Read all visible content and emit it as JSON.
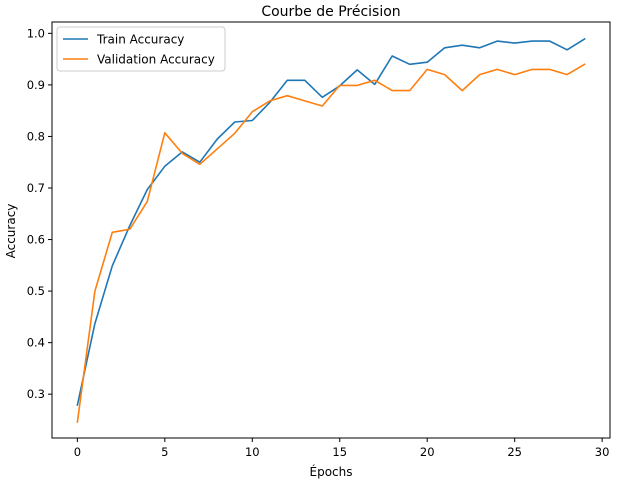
{
  "chart_data": {
    "type": "line",
    "title": "Courbe de Précision",
    "xlabel": "Épochs",
    "ylabel": "Accuracy",
    "xlim": [
      -1.45,
      30.45
    ],
    "ylim": [
      0.215,
      1.022
    ],
    "x_ticks": [
      0,
      5,
      10,
      15,
      20,
      25,
      30
    ],
    "y_ticks": [
      0.3,
      0.4,
      0.5,
      0.6,
      0.7,
      0.8,
      0.9,
      1.0
    ],
    "x_tick_labels": [
      "0",
      "5",
      "10",
      "15",
      "20",
      "25",
      "30"
    ],
    "y_tick_labels": [
      "0.3",
      "0.4",
      "0.5",
      "0.6",
      "0.7",
      "0.8",
      "0.9",
      "1.0"
    ],
    "legend_position": "top-left",
    "grid": false,
    "x": [
      0,
      1,
      2,
      3,
      4,
      5,
      6,
      7,
      8,
      9,
      10,
      11,
      12,
      13,
      14,
      15,
      16,
      17,
      18,
      19,
      20,
      21,
      22,
      23,
      24,
      25,
      26,
      27,
      28,
      29
    ],
    "series": [
      {
        "name": "Train Accuracy",
        "color": "#1f77b4",
        "values": [
          0.279,
          0.437,
          0.549,
          0.627,
          0.697,
          0.742,
          0.77,
          0.75,
          0.795,
          0.828,
          0.831,
          0.866,
          0.909,
          0.909,
          0.876,
          0.898,
          0.929,
          0.901,
          0.956,
          0.94,
          0.944,
          0.972,
          0.977,
          0.972,
          0.985,
          0.981,
          0.985,
          0.985,
          0.968,
          0.989
        ]
      },
      {
        "name": "Validation Accuracy",
        "color": "#ff7f0e",
        "values": [
          0.246,
          0.5,
          0.614,
          0.62,
          0.674,
          0.807,
          0.767,
          0.746,
          0.776,
          0.806,
          0.848,
          0.869,
          0.879,
          0.869,
          0.859,
          0.899,
          0.899,
          0.909,
          0.889,
          0.889,
          0.93,
          0.92,
          0.889,
          0.92,
          0.93,
          0.92,
          0.93,
          0.93,
          0.92,
          0.94
        ]
      }
    ]
  }
}
